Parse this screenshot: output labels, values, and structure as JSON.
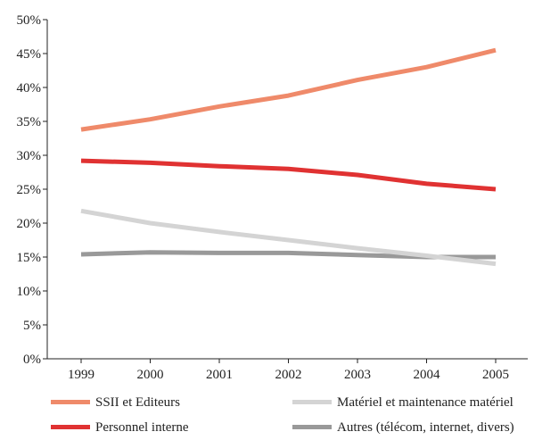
{
  "chart_data": {
    "type": "line",
    "title": "",
    "xlabel": "",
    "ylabel": "",
    "x": [
      "1999",
      "2000",
      "2001",
      "2002",
      "2003",
      "2004",
      "2005"
    ],
    "ylim": [
      0,
      50
    ],
    "y_ticks": [
      0,
      5,
      10,
      15,
      20,
      25,
      30,
      35,
      40,
      45,
      50
    ],
    "y_tick_labels": [
      "0%",
      "5%",
      "10%",
      "15%",
      "20%",
      "25%",
      "30%",
      "35%",
      "40%",
      "45%",
      "50%"
    ],
    "grid": false,
    "legend_position": "bottom",
    "series": [
      {
        "name": "SSII et Editeurs",
        "color": "#ef8a6a",
        "values": [
          33.8,
          35.3,
          37.2,
          38.8,
          41.1,
          43.0,
          45.5
        ]
      },
      {
        "name": "Personnel interne",
        "color": "#e03232",
        "values": [
          29.2,
          28.9,
          28.4,
          28.0,
          27.1,
          25.8,
          25.0
        ]
      },
      {
        "name": "Matériel et maintenance matériel",
        "color": "#d4d4d4",
        "values": [
          21.8,
          20.0,
          18.7,
          17.5,
          16.3,
          15.2,
          14.0
        ]
      },
      {
        "name": "Autres (télécom, internet, divers)",
        "color": "#999999",
        "values": [
          15.4,
          15.7,
          15.6,
          15.6,
          15.3,
          15.0,
          15.0
        ]
      }
    ]
  }
}
